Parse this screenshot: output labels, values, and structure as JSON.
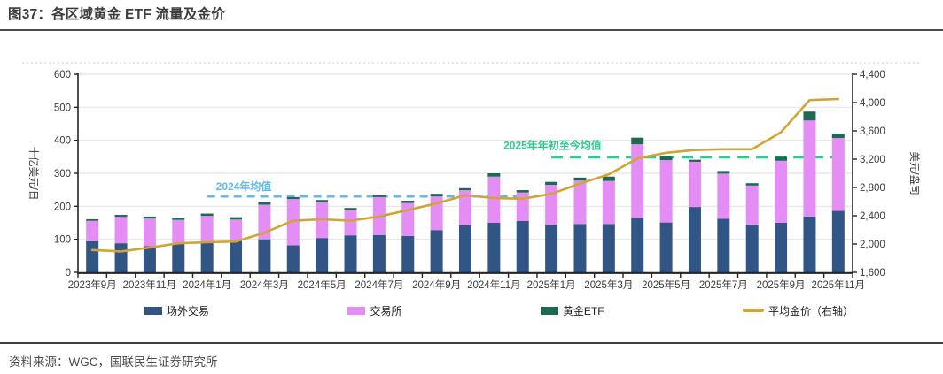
{
  "header": {
    "title": "图37：各区域黄金 ETF 流量及金价"
  },
  "footer": {
    "source": "资料来源：WGC，国联民生证券研究所"
  },
  "chart_data": {
    "type": "bar",
    "subtype": "stacked-bar-with-line",
    "categories": [
      "2023年9月",
      "2023年10月",
      "2023年11月",
      "2023年12月",
      "2024年1月",
      "2024年2月",
      "2024年3月",
      "2024年4月",
      "2024年5月",
      "2024年6月",
      "2024年7月",
      "2024年8月",
      "2024年9月",
      "2024年10月",
      "2024年11月",
      "2024年12月",
      "2025年1月",
      "2025年2月",
      "2025年3月",
      "2025年4月",
      "2025年5月",
      "2025年6月",
      "2025年7月",
      "2025年8月",
      "2025年9月",
      "2025年10月",
      "2025年11月"
    ],
    "x_tick_every": 2,
    "series": [
      {
        "name": "场外交易",
        "type": "bar",
        "axis": "left",
        "color": "#315585",
        "values": [
          94,
          88,
          79,
          86,
          91,
          98,
          100,
          82,
          104,
          112,
          113,
          110,
          128,
          142,
          150,
          156,
          144,
          146,
          146,
          165,
          151,
          198,
          162,
          145,
          150,
          169,
          186
        ]
      },
      {
        "name": "交易所",
        "type": "bar",
        "axis": "left",
        "color": "#E48EF5",
        "values": [
          62,
          80,
          84,
          73,
          80,
          62,
          105,
          140,
          108,
          76,
          115,
          100,
          102,
          107,
          140,
          86,
          121,
          132,
          131,
          223,
          189,
          137,
          137,
          118,
          188,
          291,
          221
        ]
      },
      {
        "name": "黄金ETF",
        "type": "bar",
        "axis": "left",
        "color": "#1D6A52",
        "values": [
          5,
          6,
          6,
          7,
          7,
          7,
          8,
          6,
          7,
          7,
          7,
          7,
          8,
          6,
          10,
          7,
          9,
          9,
          13,
          20,
          12,
          6,
          8,
          7,
          12,
          27,
          13
        ]
      },
      {
        "name": "平均金价（右轴）",
        "type": "line",
        "axis": "right",
        "color": "#D1A433",
        "values": [
          1915,
          1895,
          1950,
          2010,
          2025,
          2035,
          2160,
          2330,
          2350,
          2330,
          2390,
          2480,
          2575,
          2690,
          2650,
          2640,
          2710,
          2855,
          2985,
          3210,
          3290,
          3330,
          3340,
          3340,
          3580,
          4035,
          4050
        ]
      }
    ],
    "left_axis": {
      "label": "十亿美元/日",
      "min": 0,
      "max": 600,
      "step": 100
    },
    "right_axis": {
      "label": "美元/盎司",
      "min": 1600,
      "max": 4400,
      "step": 400
    },
    "annotations": [
      {
        "label": "2024年均值",
        "value": 230,
        "color": "#5FB9F2",
        "start_index": 4,
        "end_index": 15
      },
      {
        "label": "2025年年初至今均值",
        "value": 349,
        "color": "#2FC98F",
        "start_index": 16,
        "end_index": 26
      }
    ],
    "grid": true,
    "legend_position": "bottom"
  }
}
